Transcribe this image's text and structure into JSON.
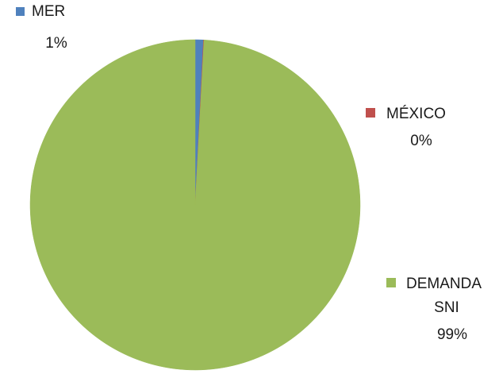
{
  "chart_data": {
    "type": "pie",
    "categories": [
      "MER",
      "MÉXICO",
      "DEMANDA SNI"
    ],
    "values": [
      0.8,
      0.05,
      99.15
    ],
    "percent_labels": [
      "1%",
      "0%",
      "99%"
    ],
    "colors": [
      "#4F81BD",
      "#C0504D",
      "#9BBB59"
    ],
    "category_label_lines": [
      [
        "MER"
      ],
      [
        "MÉXICO"
      ],
      [
        "DEMANDA",
        "SNI"
      ]
    ],
    "start_angle": "12 o'clock",
    "direction": "clockwise"
  }
}
